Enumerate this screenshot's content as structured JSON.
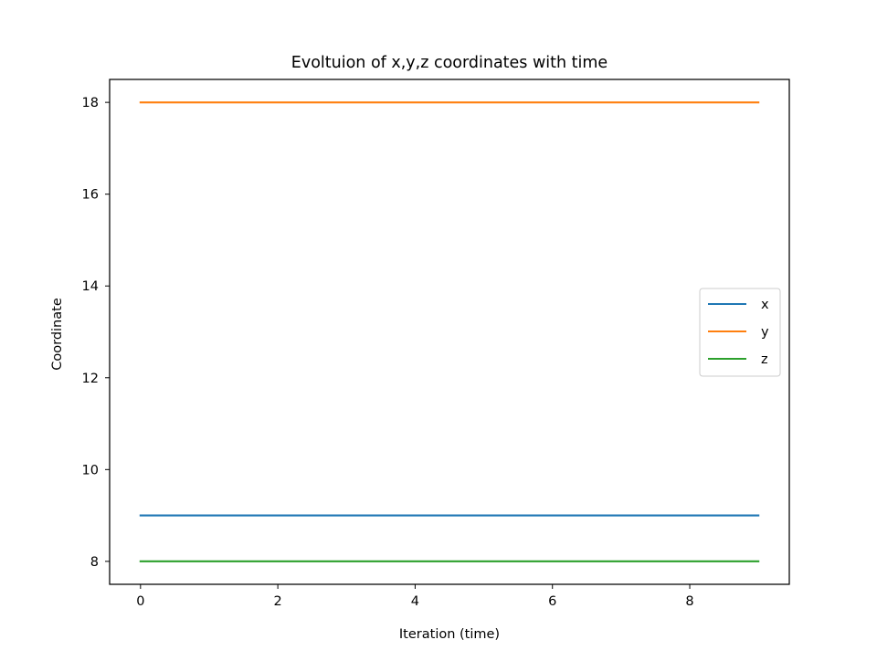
{
  "chart_data": {
    "type": "line",
    "title": "Evoltuion of x,y,z coordinates with time",
    "xlabel": "Iteration (time)",
    "ylabel": "Coordinate",
    "x": [
      0,
      1,
      2,
      3,
      4,
      5,
      6,
      7,
      8,
      9
    ],
    "series": [
      {
        "name": "x",
        "values": [
          9,
          9,
          9,
          9,
          9,
          9,
          9,
          9,
          9,
          9
        ],
        "color": "#1f77b4"
      },
      {
        "name": "y",
        "values": [
          18,
          18,
          18,
          18,
          18,
          18,
          18,
          18,
          18,
          18
        ],
        "color": "#ff7f0e"
      },
      {
        "name": "z",
        "values": [
          8,
          8,
          8,
          8,
          8,
          8,
          8,
          8,
          8,
          8
        ],
        "color": "#2ca02c"
      }
    ],
    "xlim": [
      -0.45,
      9.45
    ],
    "ylim": [
      7.5,
      18.5
    ],
    "xticks": [
      0,
      2,
      4,
      6,
      8
    ],
    "yticks": [
      8,
      10,
      12,
      14,
      16,
      18
    ],
    "xtick_labels": [
      "0",
      "2",
      "4",
      "6",
      "8"
    ],
    "ytick_labels": [
      "8",
      "10",
      "12",
      "14",
      "16",
      "18"
    ],
    "grid": false,
    "legend_position": "center-right"
  }
}
